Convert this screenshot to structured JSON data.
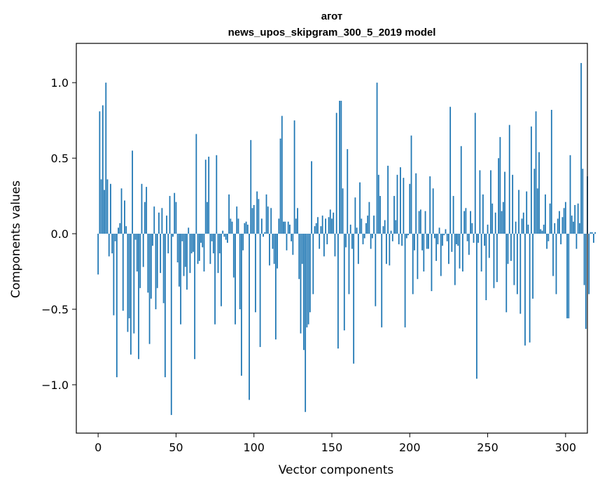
{
  "chart_data": {
    "type": "bar",
    "title_lines": [
      "агот",
      "news_upos_skipgram_300_5_2019 model"
    ],
    "xlabel": "Vector components",
    "ylabel": "Components values",
    "xlim": [
      -14,
      314
    ],
    "ylim": [
      -1.32,
      1.26
    ],
    "xticks": [
      0,
      50,
      100,
      150,
      200,
      250,
      300
    ],
    "yticks": [
      -1.0,
      -0.5,
      0.0,
      0.5,
      1.0
    ],
    "ytick_labels": [
      "−1.0",
      "−0.5",
      "0.0",
      "0.5",
      "1.0"
    ],
    "bar_color": "#1f77b4",
    "grid": false,
    "values": [
      -0.27,
      0.81,
      0.36,
      0.85,
      0.29,
      1.0,
      0.36,
      -0.15,
      0.33,
      -0.13,
      -0.54,
      -0.05,
      -0.95,
      0.04,
      0.07,
      0.3,
      -0.51,
      0.22,
      0.05,
      -0.65,
      -0.56,
      -0.8,
      0.55,
      -0.66,
      -0.04,
      -0.25,
      -0.83,
      -0.36,
      0.33,
      -0.22,
      0.21,
      0.31,
      -0.39,
      -0.73,
      -0.43,
      -0.08,
      0.18,
      -0.5,
      -0.36,
      0.14,
      -0.26,
      0.17,
      -0.46,
      -0.95,
      0.12,
      -0.13,
      0.25,
      -1.2,
      -0.02,
      0.27,
      0.21,
      -0.19,
      -0.35,
      -0.6,
      -0.05,
      -0.28,
      -0.22,
      -0.37,
      0.04,
      -0.26,
      -0.13,
      -0.12,
      -0.83,
      0.66,
      -0.2,
      -0.18,
      -0.06,
      -0.09,
      -0.25,
      0.49,
      0.21,
      0.51,
      -0.2,
      -0.05,
      -0.13,
      -0.6,
      0.52,
      -0.26,
      -0.13,
      -0.48,
      0.02,
      -0.02,
      -0.04,
      -0.06,
      0.26,
      0.1,
      0.08,
      -0.29,
      -0.6,
      0.18,
      0.1,
      -0.5,
      -0.94,
      -0.11,
      0.07,
      0.08,
      0.06,
      -1.1,
      0.62,
      0.17,
      0.19,
      -0.52,
      0.28,
      0.23,
      -0.75,
      0.1,
      -0.02,
      0.01,
      0.26,
      0.18,
      -0.21,
      0.17,
      -0.1,
      -0.2,
      -0.7,
      -0.23,
      0.1,
      0.63,
      0.78,
      0.08,
      0.08,
      -0.11,
      0.08,
      0.06,
      -0.05,
      -0.14,
      0.75,
      0.1,
      0.17,
      -0.3,
      -0.66,
      -0.2,
      -0.77,
      -1.18,
      -0.62,
      -0.6,
      -0.52,
      0.48,
      -0.4,
      0.05,
      0.07,
      0.11,
      -0.1,
      0.05,
      0.12,
      -0.15,
      0.1,
      -0.07,
      0.11,
      0.16,
      0.1,
      0.14,
      -0.15,
      0.8,
      -0.76,
      0.88,
      0.88,
      0.3,
      -0.64,
      -0.09,
      0.56,
      -0.4,
      0.06,
      -0.1,
      -0.86,
      0.24,
      0.04,
      -0.2,
      0.34,
      0.1,
      -0.07,
      -0.03,
      0.07,
      0.12,
      0.21,
      -0.1,
      -0.03,
      0.12,
      -0.48,
      1.0,
      0.39,
      0.25,
      -0.62,
      0.05,
      0.09,
      -0.2,
      0.45,
      -0.21,
      0.02,
      -0.05,
      0.25,
      0.09,
      0.39,
      -0.07,
      0.44,
      -0.08,
      0.37,
      -0.62,
      -0.03,
      -0.01,
      0.33,
      0.65,
      -0.4,
      -0.11,
      0.4,
      -0.3,
      0.15,
      0.16,
      -0.11,
      -0.25,
      0.15,
      -0.1,
      -0.1,
      0.38,
      -0.38,
      0.3,
      -0.03,
      -0.18,
      -0.07,
      0.04,
      -0.28,
      -0.08,
      -0.01,
      0.03,
      -0.05,
      -0.2,
      0.84,
      -0.12,
      0.25,
      -0.34,
      -0.07,
      -0.08,
      -0.23,
      0.58,
      -0.25,
      0.15,
      0.17,
      -0.05,
      -0.14,
      0.15,
      0.07,
      -0.06,
      0.8,
      -0.96,
      -0.06,
      0.42,
      -0.25,
      0.26,
      -0.08,
      -0.44,
      0.06,
      -0.16,
      0.42,
      0.2,
      -0.36,
      0.14,
      -0.32,
      0.5,
      0.64,
      0.15,
      0.21,
      0.41,
      -0.52,
      -0.2,
      0.72,
      -0.18,
      0.39,
      -0.34,
      0.08,
      -0.4,
      0.29,
      -0.53,
      0.1,
      0.14,
      -0.74,
      0.28,
      0.06,
      -0.72,
      0.71,
      -0.43,
      0.43,
      0.81,
      0.3,
      0.54,
      0.03,
      0.02,
      0.06,
      0.26,
      -0.1,
      -0.05,
      0.2,
      0.82,
      -0.28,
      0.07,
      -0.4,
      0.1,
      0.15,
      -0.07,
      0.11,
      0.17,
      0.21,
      -0.56,
      -0.56,
      0.52,
      0.12,
      0.08,
      0.19,
      -0.1,
      0.2,
      0.07,
      1.13,
      0.43,
      -0.34,
      -0.63,
      0.38,
      -0.4,
      0.01,
      0.01,
      -0.06,
      0.01
    ]
  }
}
